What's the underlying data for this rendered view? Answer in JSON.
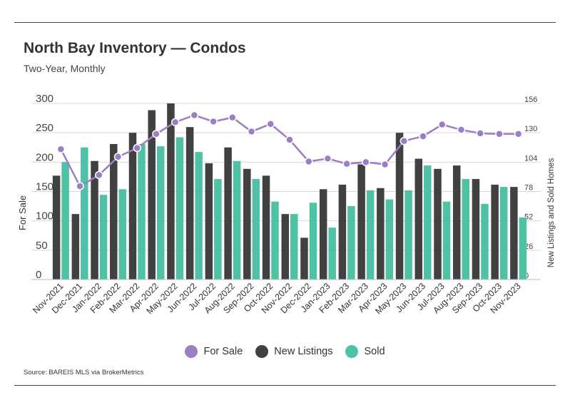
{
  "header": {
    "title": "North Bay Inventory — Condos",
    "subtitle": "Two-Year, Monthly"
  },
  "footer": {
    "source": "Source:  BAREIS MLS via BrokerMetrics"
  },
  "colors": {
    "for_sale": "#9b7fc2",
    "new_listings": "#414141",
    "sold": "#4fc2a6",
    "grid": "#d9d9d9"
  },
  "chart_data": {
    "type": "bar",
    "categories": [
      "Nov-2021",
      "Dec-2021",
      "Jan-2022",
      "Feb-2022",
      "Mar-2022",
      "Apr-2022",
      "May-2022",
      "Jun-2022",
      "Jul-2022",
      "Aug-2022",
      "Sep-2022",
      "Oct-2022",
      "Nov-2022",
      "Dec-2022",
      "Jan-2023",
      "Feb-2023",
      "Mar-2023",
      "Apr-2023",
      "May-2023",
      "Jun-2023",
      "Jul-2023",
      "Aug-2023",
      "Sep-2023",
      "Oct-2023",
      "Nov-2023"
    ],
    "y_left": {
      "label": "For Sale",
      "ticks": [
        0,
        50,
        100,
        150,
        200,
        250,
        300
      ],
      "range": [
        0,
        300
      ]
    },
    "y_right": {
      "label": "New Listings and Sold Homes",
      "ticks": [
        0,
        26,
        52,
        78,
        104,
        130,
        156
      ],
      "range": [
        0,
        156
      ]
    },
    "grid": true,
    "legend_position": "bottom",
    "series": [
      {
        "name": "For Sale",
        "type": "line",
        "axis": "left",
        "values": [
          222,
          159,
          178,
          209,
          224,
          248,
          268,
          280,
          269,
          276,
          252,
          265,
          238,
          201,
          206,
          197,
          200,
          196,
          236,
          244,
          264,
          255,
          249,
          248,
          248
        ]
      },
      {
        "name": "New Listings",
        "type": "bar",
        "axis": "right",
        "values": [
          92,
          58,
          105,
          120,
          130,
          150,
          156,
          135,
          103,
          117,
          98,
          92,
          58,
          37,
          80,
          84,
          102,
          81,
          130,
          107,
          98,
          101,
          89,
          84,
          82
        ]
      },
      {
        "name": "Sold",
        "type": "bar",
        "axis": "right",
        "values": [
          104,
          117,
          75,
          80,
          120,
          118,
          126,
          113,
          89,
          105,
          89,
          69,
          58,
          68,
          46,
          65,
          79,
          71,
          79,
          101,
          69,
          89,
          67,
          82,
          55
        ]
      }
    ]
  }
}
